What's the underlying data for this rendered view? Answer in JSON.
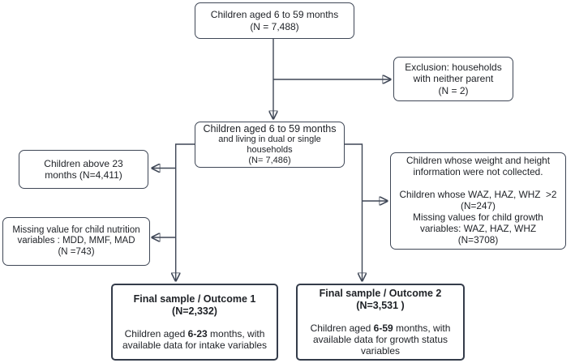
{
  "colors": {
    "background": "#ffffff",
    "box_border": "#3f4756",
    "final_box_border": "#343c4a",
    "connector": "#3f4756",
    "text": "#1e2126"
  },
  "boxes": {
    "top": {
      "lines": [
        "Children aged 6 to 59 months",
        "(N = 7,488)"
      ]
    },
    "exclusion": {
      "lines": [
        "Exclusion: households",
        "with neither parent",
        "(N = 2)"
      ]
    },
    "mid": {
      "heading": "Children aged 6 to 59 months",
      "lines": [
        "and living in dual or single",
        "households",
        "(N= 7,486)"
      ]
    },
    "left_above23": {
      "lines": [
        "Children above 23",
        "months (N=4,411)"
      ]
    },
    "left_missing_nutrition": {
      "lines": [
        "Missing value for child nutrition",
        "variables : MDD, MMF, MAD",
        "(N =743)"
      ]
    },
    "right_growth_exclusions": {
      "lines": [
        "Children whose weight and height",
        "information were not collected.",
        "",
        "Children whose WAZ, HAZ, WHZ  >2",
        "(N=247)",
        "Missing values for child growth",
        "variables: WAZ, HAZ, WHZ",
        "(N=3708)"
      ]
    },
    "final_outcome1": {
      "title_lines": [
        "Final sample / Outcome 1",
        "(N=2,332)"
      ],
      "body_segments": [
        {
          "text": "Children  aged ",
          "bold": false
        },
        {
          "text": "6-23",
          "bold": true
        },
        {
          "text": " months, with available data for intake  variables",
          "bold": false
        }
      ]
    },
    "final_outcome2": {
      "title_lines": [
        "Final sample / Outcome 2",
        "(N=3,531 )"
      ],
      "body_segments": [
        {
          "text": "Children  aged ",
          "bold": false
        },
        {
          "text": "6-59",
          "bold": true
        },
        {
          "text": " months, with available data for growth status variables",
          "bold": false
        }
      ]
    }
  }
}
